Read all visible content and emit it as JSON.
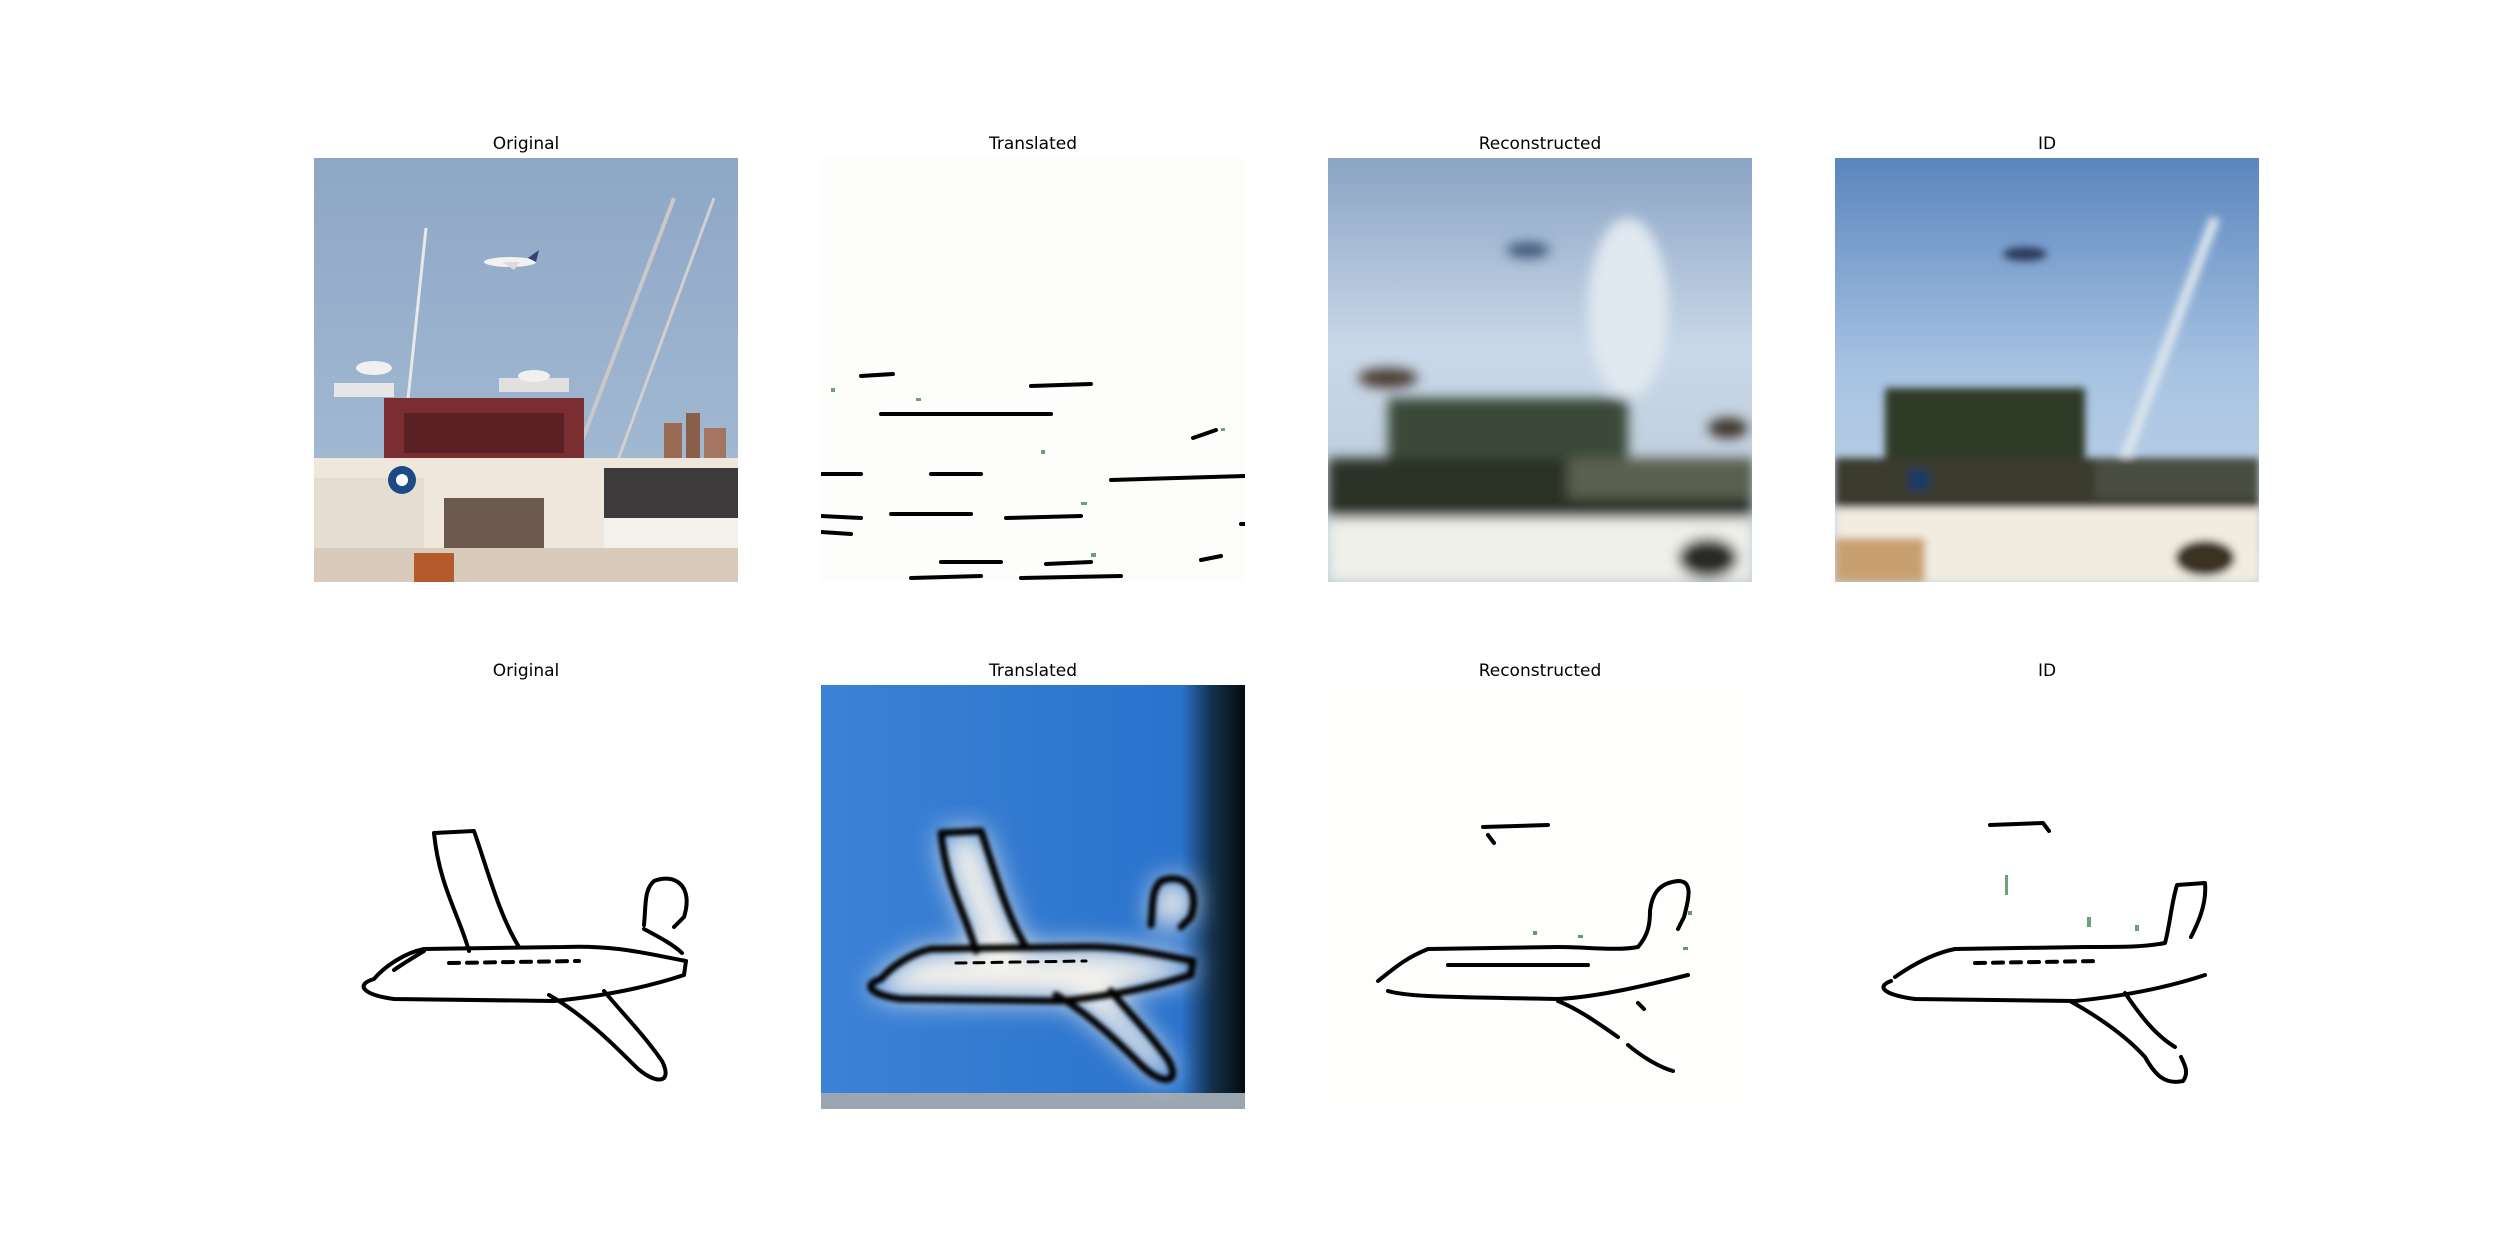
{
  "rows": [
    {
      "panels": [
        {
          "title": "Original"
        },
        {
          "title": "Translated"
        },
        {
          "title": "Reconstructed"
        },
        {
          "title": "ID"
        }
      ]
    },
    {
      "panels": [
        {
          "title": "Original"
        },
        {
          "title": "Translated"
        },
        {
          "title": "Reconstructed"
        },
        {
          "title": "ID"
        }
      ]
    }
  ]
}
